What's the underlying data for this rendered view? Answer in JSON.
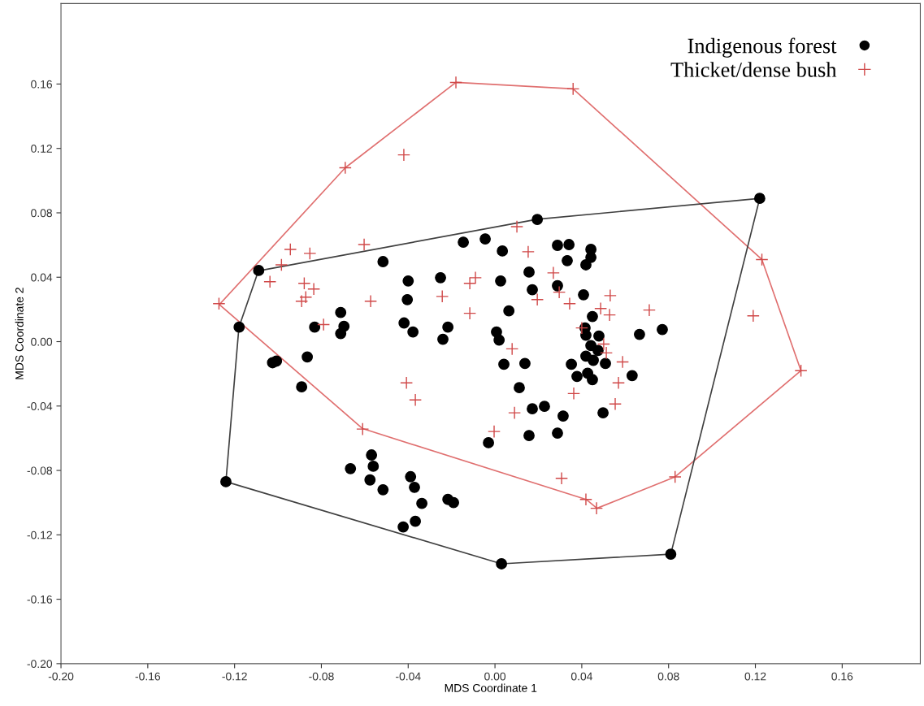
{
  "chart_data": {
    "type": "scatter",
    "xlabel": "MDS Coordinate 1",
    "ylabel": "MDS Coordinate 2",
    "xlim": [
      -0.2,
      0.196
    ],
    "ylim": [
      -0.2,
      0.21
    ],
    "xticks": [
      {
        "value": -0.2,
        "label": "-0.20"
      },
      {
        "value": -0.16,
        "label": "-0.16"
      },
      {
        "value": -0.12,
        "label": "-0.12"
      },
      {
        "value": -0.08,
        "label": "-0.08"
      },
      {
        "value": -0.04,
        "label": "-0.04"
      },
      {
        "value": 0,
        "label": "0.00"
      },
      {
        "value": 0.04,
        "label": "0.04"
      },
      {
        "value": 0.08,
        "label": "0.08"
      },
      {
        "value": 0.12,
        "label": "0.12"
      },
      {
        "value": 0.16,
        "label": "0.16"
      }
    ],
    "yticks": [
      {
        "value": -0.2,
        "label": "-0.20"
      },
      {
        "value": -0.16,
        "label": "-0.16"
      },
      {
        "value": -0.12,
        "label": "-0.12"
      },
      {
        "value": -0.08,
        "label": "-0.08"
      },
      {
        "value": -0.04,
        "label": "-0.04"
      },
      {
        "value": 0,
        "label": "0.00"
      },
      {
        "value": 0.04,
        "label": "0.04"
      },
      {
        "value": 0.08,
        "label": "0.08"
      },
      {
        "value": 0.12,
        "label": "0.12"
      },
      {
        "value": 0.16,
        "label": "0.16"
      }
    ],
    "grid": false,
    "legend": "top right",
    "series": [
      {
        "type": "line",
        "color": "#e07070",
        "marker": "none",
        "line_style": "solid",
        "x": [
          -0.127,
          -0.069,
          -0.018,
          0.036,
          0.123,
          0.141
        ],
        "values": [
          0.023,
          0.108,
          0.161,
          0.157,
          0.051,
          -0.018
        ]
      },
      {
        "type": "line",
        "color": "#e07070",
        "marker": "none",
        "line_style": "solid",
        "x": [
          -0.127,
          -0.061,
          0.042,
          0.047,
          0.083,
          0.141
        ],
        "values": [
          0.023,
          -0.054,
          -0.098,
          -0.1035,
          -0.084,
          -0.018
        ]
      },
      {
        "type": "line",
        "color": "#404040",
        "marker": "none",
        "line_style": "solid",
        "x": [
          -0.124,
          -0.118,
          -0.109,
          0.0195,
          0.122
        ],
        "values": [
          -0.087,
          0.009,
          0.044,
          0.076,
          0.089
        ]
      },
      {
        "type": "line",
        "color": "#404040",
        "marker": "none",
        "line_style": "solid",
        "x": [
          -0.124,
          0.003,
          0.081,
          0.122
        ],
        "values": [
          -0.087,
          -0.138,
          -0.132,
          0.089
        ]
      },
      {
        "name": "Indigenous forest",
        "color": "#000000",
        "marker": "circle",
        "x": [
          -0.0146,
          -0.0516,
          -0.1089,
          -0.04,
          -0.0251,
          -0.0404,
          -0.0711,
          -0.1179,
          -0.0831,
          -0.0696,
          -0.0711,
          -0.0419,
          -0.0378,
          -0.0217,
          -0.024,
          -0.0865,
          -0.1025,
          -0.1007,
          -0.0891,
          0.0195,
          -0.0045,
          0.0034,
          0.0288,
          0.0341,
          0.0442,
          0.0442,
          0.0419,
          0.0333,
          0.0157,
          0.0026,
          0.0172,
          0.0288,
          0.0408,
          0.0064,
          0.0449,
          0.0415,
          0.0419,
          0.0479,
          0.0666,
          0.0771,
          0.0442,
          0.0475,
          0.0419,
          0.0453,
          0.0509,
          0.0352,
          0.0632,
          0.0378,
          0.0427,
          0.0449,
          0.0007,
          0.0019,
          0.0041,
          0.0138,
          0.0112,
          0.0172,
          0.0228,
          0.0314,
          0.0498,
          -0.003,
          0.0157,
          0.0288,
          -0.0569,
          -0.0561,
          -0.0666,
          -0.0576,
          -0.0516,
          -0.0389,
          -0.0371,
          -0.0337,
          -0.0217,
          -0.0191,
          -0.0367,
          -0.0423,
          0.122,
          0.081,
          0.003,
          -0.124
        ],
        "values": [
          0.0618,
          0.0497,
          0.0442,
          0.0377,
          0.0397,
          0.0261,
          0.0181,
          0.009,
          0.009,
          0.0095,
          0.005,
          0.0116,
          0.006,
          0.009,
          0.0015,
          -0.0095,
          -0.0131,
          -0.0121,
          -0.0281,
          0.0759,
          0.0638,
          0.0563,
          0.0598,
          0.0603,
          0.0573,
          0.0523,
          0.0477,
          0.0503,
          0.0432,
          0.0377,
          0.0322,
          0.0347,
          0.0291,
          0.0191,
          0.0156,
          0.0085,
          0.004,
          0.0035,
          0.0045,
          0.0075,
          -0.0025,
          -0.0055,
          -0.009,
          -0.0116,
          -0.0136,
          -0.0141,
          -0.0211,
          -0.0216,
          -0.0196,
          -0.0236,
          0.006,
          0.001,
          -0.0141,
          -0.0136,
          -0.0286,
          -0.0417,
          -0.0402,
          -0.0462,
          -0.0442,
          -0.0628,
          -0.0583,
          -0.0568,
          -0.0704,
          -0.0774,
          -0.0789,
          -0.0859,
          -0.092,
          -0.0839,
          -0.0905,
          -0.1005,
          -0.098,
          -0.1,
          -0.1116,
          -0.1151,
          0.089,
          -0.132,
          -0.138,
          -0.087
        ]
      },
      {
        "name": "Thicket/dense bush",
        "color": "#d04848",
        "marker": "cross",
        "x": [
          -0.0943,
          -0.0853,
          -0.0603,
          -0.0984,
          -0.1037,
          -0.1272,
          -0.0879,
          -0.0835,
          -0.0891,
          -0.0872,
          -0.0573,
          -0.079,
          -0.0408,
          -0.0367,
          -0.0116,
          -0.009,
          -0.0116,
          -0.0243,
          0.0101,
          0.0153,
          0.0269,
          0.0296,
          0.0195,
          0.0344,
          0.0531,
          0.0487,
          0.0528,
          0.0711,
          0.04,
          0.0501,
          0.0513,
          0.0588,
          0.0569,
          0.0363,
          0.0554,
          0.009,
          0.0079,
          -0.061,
          -0.0004,
          0.0307,
          0.0419,
          0.0468,
          -0.018,
          0.036,
          -0.069,
          0.123,
          0.141,
          0.083,
          -0.042,
          0.119
        ],
        "values": [
          0.0573,
          0.0548,
          0.0603,
          0.0477,
          0.0372,
          0.0236,
          0.0362,
          0.0327,
          0.0251,
          0.0276,
          0.0251,
          0.0106,
          -0.0256,
          -0.0362,
          0.0362,
          0.0397,
          0.0176,
          0.0281,
          0.0714,
          0.0558,
          0.0427,
          0.0307,
          0.0261,
          0.0236,
          0.0286,
          0.0206,
          0.0166,
          0.0196,
          0.0085,
          -0.0015,
          -0.007,
          -0.0126,
          -0.0256,
          -0.0322,
          -0.0387,
          -0.0442,
          -0.0045,
          -0.0543,
          -0.0558,
          -0.0849,
          -0.098,
          -0.1035,
          0.161,
          0.157,
          0.108,
          0.051,
          -0.018,
          -0.084,
          0.116,
          0.016
        ]
      }
    ]
  }
}
